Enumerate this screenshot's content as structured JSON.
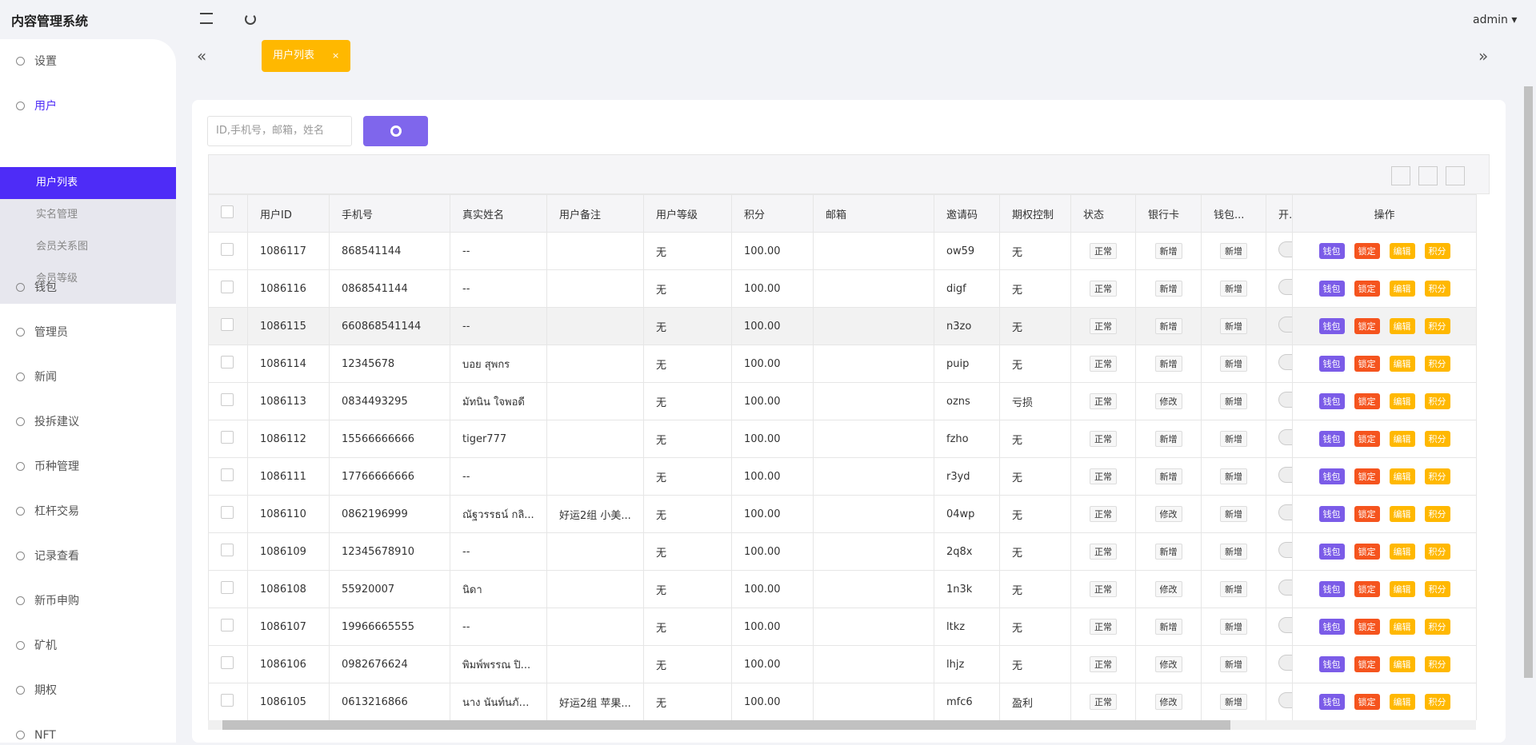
{
  "header": {
    "title": "内容管理系统",
    "user": "admin"
  },
  "sidebar": {
    "menu": [
      "设置",
      "用户",
      "钱包",
      "管理员",
      "新闻",
      "投拆建议",
      "币种管理",
      "杠杆交易",
      "记录查看",
      "新币申购",
      "矿机",
      "期权",
      "NFT"
    ],
    "submenu": [
      "用户列表",
      "实名管理",
      "会员关系图",
      "会员等级"
    ]
  },
  "tabs": [
    "用户列表"
  ],
  "search": {
    "placeholder": "ID,手机号，邮箱，姓名"
  },
  "table": {
    "columns": [
      "用户ID",
      "手机号",
      "真实姓名",
      "用户备注",
      "用户等级",
      "积分",
      "邮箱",
      "邀请码",
      "期权控制",
      "状态",
      "银行卡",
      "钱包...",
      "开",
      "操作"
    ],
    "row_actions": [
      "钱包",
      "锁定",
      "编辑",
      "积分"
    ],
    "rows": [
      [
        "1086117",
        "868541144",
        "--",
        null,
        "无",
        "100.00",
        null,
        "ow59",
        "无",
        "正常",
        "新增",
        "新增"
      ],
      [
        "1086116",
        "0868541144",
        "--",
        null,
        "无",
        "100.00",
        null,
        "digf",
        "无",
        "正常",
        "新增",
        "新增"
      ],
      [
        "1086115",
        "660868541144",
        "--",
        null,
        "无",
        "100.00",
        null,
        "n3zo",
        "无",
        "正常",
        "新增",
        "新增"
      ],
      [
        "1086114",
        "12345678",
        "บอย สุพกร",
        null,
        "无",
        "100.00",
        null,
        "puip",
        "无",
        "正常",
        "新增",
        "新增"
      ],
      [
        "1086113",
        "0834493295",
        "มัทนิน ใจพอดี",
        null,
        "无",
        "100.00",
        null,
        "ozns",
        "亏损",
        "正常",
        "修改",
        "新增"
      ],
      [
        "1086112",
        "15566666666",
        "tiger777",
        null,
        "无",
        "100.00",
        null,
        "fzho",
        "无",
        "正常",
        "新增",
        "新增"
      ],
      [
        "1086111",
        "17766666666",
        "--",
        null,
        "无",
        "100.00",
        null,
        "r3yd",
        "无",
        "正常",
        "新增",
        "新增"
      ],
      [
        "1086110",
        "0862196999",
        "ณัฐวรรธน์ กลิ...",
        "好运2组 小美...",
        "无",
        "100.00",
        null,
        "04wp",
        "无",
        "正常",
        "修改",
        "新增"
      ],
      [
        "1086109",
        "12345678910",
        "--",
        null,
        "无",
        "100.00",
        null,
        "2q8x",
        "无",
        "正常",
        "新增",
        "新增"
      ],
      [
        "1086108",
        "55920007",
        "นิดา",
        null,
        "无",
        "100.00",
        null,
        "1n3k",
        "无",
        "正常",
        "修改",
        "新增"
      ],
      [
        "1086107",
        "19966665555",
        "--",
        null,
        "无",
        "100.00",
        null,
        "ltkz",
        "无",
        "正常",
        "新增",
        "新增"
      ],
      [
        "1086106",
        "0982676624",
        "พิมพ์พรรณ ปิ...",
        null,
        "无",
        "100.00",
        null,
        "lhjz",
        "无",
        "正常",
        "修改",
        "新增"
      ],
      [
        "1086105",
        "0613216866",
        "นาง นันท์นภัส...",
        "好运2组 苹果...",
        "无",
        "100.00",
        null,
        "mfc6",
        "盈利",
        "正常",
        "修改",
        "新增"
      ]
    ]
  }
}
